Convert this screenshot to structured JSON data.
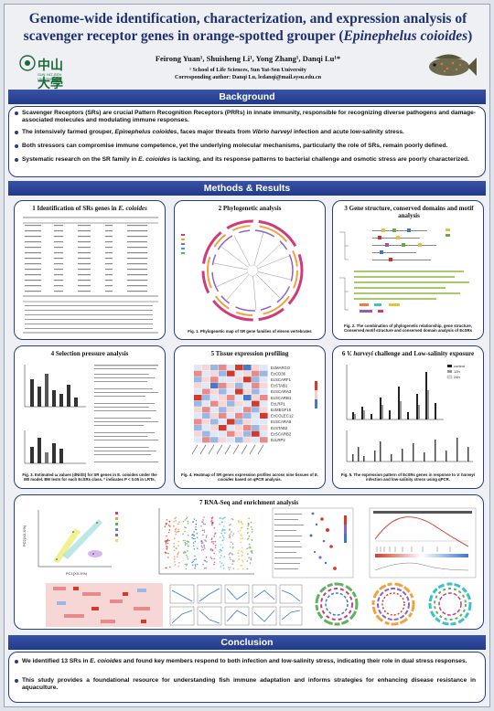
{
  "title": {
    "line1": "Genome-wide identification, characterization, and expression analysis of",
    "line2_pre": "scavenger receptor genes in orange-spotted grouper (",
    "line2_italic": "Epinephelus coioides",
    "line2_post": ")"
  },
  "logo": {
    "name_cn": "中山大學",
    "name_en": "SUN YAT-SEN UNIVERSITY"
  },
  "authors": "Feirong Yuan¹, Shuisheng Li¹, Yong Zhang¹, Danqi Lu¹*",
  "affiliation": "¹ School of Life Sciences, Sun Yat-Sen University",
  "corresponding": "Corresponding author: Danqi Lu, ledanqi@mail.sysu.edu.cn",
  "sections": {
    "background": "Background",
    "methods": "Methods & Results",
    "conclusion": "Conclusion"
  },
  "background_bullets": [
    "Scavenger Receptors (SRs) are crucial Pattern Recognition Receptors (PRRs) in innate immunity, responsible for recognizing diverse pathogens and damage-associated molecules and modulating immune responses.",
    "The intensively farmed grouper, Epinephelus coioides, faces major threats from Vibrio harveyi infection and acute low-salinity stress.",
    "Both stressors can compromise immune competence, yet the underlying molecular mechanisms, particularly the role of SRs, remain poorly defined.",
    "Systematic research on the SR family in E. coioides is lacking, and its response patterns to bacterial challenge and osmotic stress are poorly characterized."
  ],
  "panels": {
    "p1": {
      "title": "1 Identification of SRs genes in E. coioides"
    },
    "p2": {
      "title": "2 Phylogenetic analysis",
      "caption": "Fig. 1. Phylogenetic map of SR gene families of eleven vertebrates"
    },
    "p3": {
      "title": "3 Gene structure, conserved domains and motif analysis",
      "caption": "Fig. 2. The combination of phylogenetic relationship, gene structure, Conserved motif structure and conserved domain analysis of EcSRs"
    },
    "p4": {
      "title": "4 Selection pressure analysis",
      "caption": "Fig. 3. Estimated ω values (dN/dS) for SR genes in E. coioides under the M0 model. BM tests for each EcSRs class. * indicates P < 0.05 in LRTs."
    },
    "p5": {
      "title": "5 Tissue expression profiling",
      "caption": "Fig. 4. Heatmap of SR genes expression profiles across nine tissues of E. coioides based on qPCR analysis."
    },
    "p6": {
      "title": "6 V. harveyi challenge and Low-salinity exposure",
      "caption": "Fig. 5. The expression pattern of EcSRs genes in response to V. harveyi infection and low-salinity stress using qPCR."
    },
    "p7": {
      "title": "7 RNA-Seq and enrichment analysis"
    }
  },
  "heatmap_genes": [
    "EcMARCO",
    "EcCD36",
    "EcSCARF1",
    "EcSTAB1",
    "EcSCARA3",
    "EcSCARB1",
    "EcLRP1",
    "EcMEGF10",
    "EcCOLEC12",
    "EcSCARA5",
    "EcSTAB2",
    "EcSCARB2",
    "EcLRP2"
  ],
  "legend_6": [
    "control",
    "12h",
    "24h"
  ],
  "pca_axes": {
    "x": "PC1(XX.X%)",
    "y": "PC2(XX.X%)"
  },
  "conclusion_bullets": [
    "We identified 13 SRs in E. coioides and found key members respond to both infection and low-salinity stress, indicating their role in dual stress responses.",
    "This study provides a foundational resource for understanding fish immune adaptation and informs strategies for enhancing disease resistance in aquaculture."
  ],
  "colors": {
    "primary": "#2a3d80",
    "accent": "#d9272e",
    "band": "#213a8a"
  }
}
